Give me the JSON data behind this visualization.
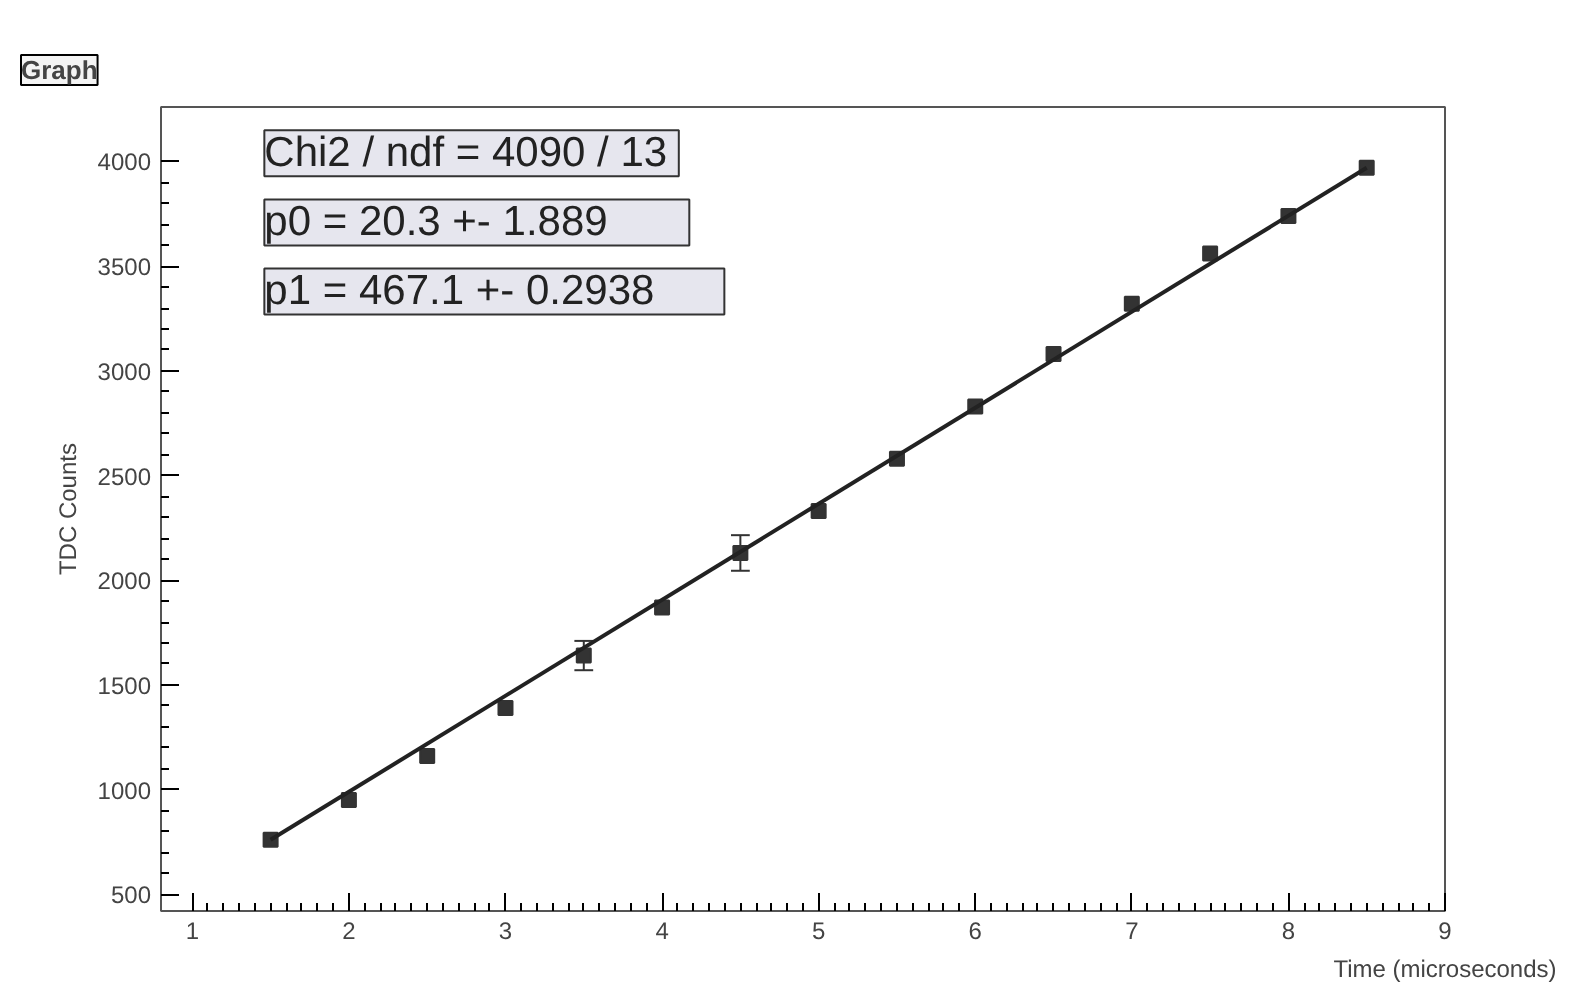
{
  "chart_data": {
    "type": "scatter",
    "title": "Graph",
    "xlabel": "Time (microseconds)",
    "ylabel": "TDC Counts",
    "annotations": [
      "Chi2 / ndf =  4090 / 13",
      "p0       =  20.3 +- 1.889",
      "p1       = 467.1 +- 0.2938"
    ],
    "xlim": [
      0.8,
      9
    ],
    "ylim": [
      420,
      4260
    ],
    "xticks": [
      1,
      2,
      3,
      4,
      5,
      6,
      7,
      8,
      9
    ],
    "yticks": [
      500,
      1000,
      1500,
      2000,
      2500,
      3000,
      3500,
      4000
    ],
    "grid": false,
    "series": [
      {
        "marker": "square",
        "color": "#333333",
        "x": [
          1.5,
          2,
          2.5,
          3,
          3.5,
          4,
          4.5,
          5,
          5.5,
          6,
          6.5,
          7,
          7.5,
          8,
          8.5
        ],
        "values": [
          760,
          950,
          1160,
          1390,
          1640,
          1870,
          2130,
          2330,
          2580,
          2830,
          3080,
          3320,
          3560,
          3740,
          3970
        ],
        "errors": [
          null,
          null,
          null,
          null,
          70,
          null,
          85,
          null,
          null,
          null,
          null,
          null,
          null,
          null,
          null
        ]
      },
      {
        "type": "line",
        "color": "#222222",
        "x": [
          1.5,
          8.5
        ],
        "values": [
          760,
          3970
        ]
      }
    ]
  }
}
